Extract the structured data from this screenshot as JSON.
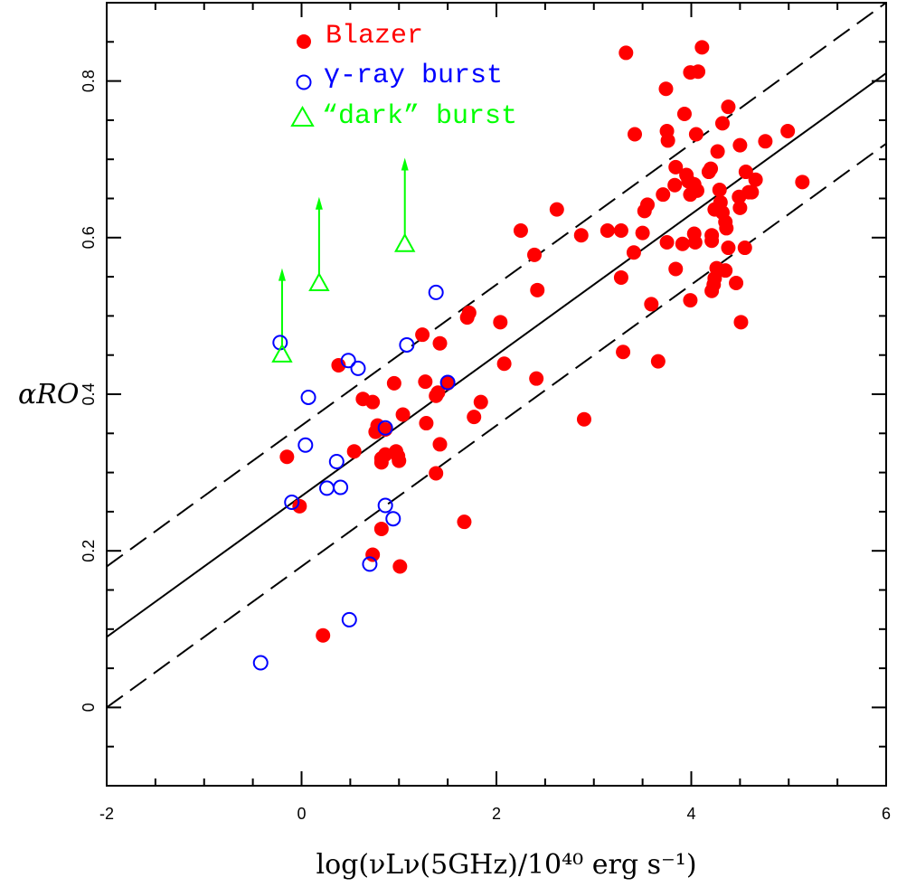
{
  "chart_data": {
    "type": "scatter",
    "xlabel": "log(νLν(5GHz)/10⁴⁰ erg s⁻¹)",
    "ylabel": "αRO",
    "xlim": [
      -2,
      6
    ],
    "ylim": [
      -0.1,
      0.9
    ],
    "x_ticks": [
      -2,
      0,
      2,
      4,
      6
    ],
    "y_ticks": [
      0,
      0.2,
      0.4,
      0.6,
      0.8
    ],
    "x_tick_labels": [
      "-2",
      "0",
      "2",
      "4",
      "6"
    ],
    "y_tick_labels": [
      "0",
      "0.2",
      "0.4",
      "0.6",
      "0.8"
    ],
    "grid": false,
    "legend_position": "top-left",
    "colors": {
      "blazer": "#ff0000",
      "grb": "#0000ff",
      "dark": "#00ff00",
      "lines": "#000000"
    },
    "lines": [
      {
        "style": "solid",
        "x": [
          -2,
          6
        ],
        "y": [
          0.09,
          0.81
        ]
      },
      {
        "style": "dashed",
        "x": [
          -2,
          6
        ],
        "y": [
          0.18,
          0.9
        ]
      },
      {
        "style": "dashed",
        "x": [
          -2,
          6
        ],
        "y": [
          0.0,
          0.72
        ]
      }
    ],
    "series": [
      {
        "name": "Blazer",
        "marker": "filled-circle",
        "points": [
          [
            3.33,
            0.836
          ],
          [
            4.11,
            0.843
          ],
          [
            3.74,
            0.79
          ],
          [
            3.99,
            0.811
          ],
          [
            4.07,
            0.812
          ],
          [
            3.93,
            0.758
          ],
          [
            4.38,
            0.767
          ],
          [
            3.42,
            0.732
          ],
          [
            3.75,
            0.736
          ],
          [
            3.76,
            0.724
          ],
          [
            4.05,
            0.732
          ],
          [
            4.32,
            0.746
          ],
          [
            4.99,
            0.736
          ],
          [
            4.76,
            0.723
          ],
          [
            4.5,
            0.718
          ],
          [
            4.27,
            0.71
          ],
          [
            3.84,
            0.69
          ],
          [
            3.95,
            0.68
          ],
          [
            4.18,
            0.684
          ],
          [
            4.2,
            0.688
          ],
          [
            4.56,
            0.684
          ],
          [
            4.66,
            0.674
          ],
          [
            5.14,
            0.671
          ],
          [
            3.83,
            0.667
          ],
          [
            3.97,
            0.672
          ],
          [
            4.03,
            0.668
          ],
          [
            4.06,
            0.66
          ],
          [
            4.29,
            0.661
          ],
          [
            4.59,
            0.658
          ],
          [
            3.71,
            0.655
          ],
          [
            3.99,
            0.655
          ],
          [
            4.3,
            0.645
          ],
          [
            4.49,
            0.652
          ],
          [
            4.62,
            0.658
          ],
          [
            3.55,
            0.642
          ],
          [
            3.52,
            0.634
          ],
          [
            4.24,
            0.636
          ],
          [
            4.32,
            0.632
          ],
          [
            4.5,
            0.638
          ],
          [
            4.35,
            0.62
          ],
          [
            4.36,
            0.612
          ],
          [
            4.21,
            0.603
          ],
          [
            4.03,
            0.605
          ],
          [
            4.21,
            0.596
          ],
          [
            2.62,
            0.636
          ],
          [
            2.25,
            0.609
          ],
          [
            3.14,
            0.609
          ],
          [
            3.28,
            0.609
          ],
          [
            2.87,
            0.603
          ],
          [
            3.5,
            0.606
          ],
          [
            3.75,
            0.594
          ],
          [
            3.91,
            0.592
          ],
          [
            4.04,
            0.594
          ],
          [
            4.38,
            0.587
          ],
          [
            4.55,
            0.587
          ],
          [
            2.39,
            0.578
          ],
          [
            3.41,
            0.581
          ],
          [
            3.84,
            0.56
          ],
          [
            4.26,
            0.561
          ],
          [
            4.24,
            0.548
          ],
          [
            4.35,
            0.558
          ],
          [
            4.23,
            0.54
          ],
          [
            4.21,
            0.532
          ],
          [
            4.46,
            0.542
          ],
          [
            3.28,
            0.549
          ],
          [
            3.59,
            0.515
          ],
          [
            3.99,
            0.52
          ],
          [
            2.42,
            0.533
          ],
          [
            1.72,
            0.504
          ],
          [
            1.7,
            0.498
          ],
          [
            2.04,
            0.492
          ],
          [
            4.51,
            0.492
          ],
          [
            1.24,
            0.476
          ],
          [
            1.42,
            0.465
          ],
          [
            3.3,
            0.454
          ],
          [
            3.66,
            0.442
          ],
          [
            2.08,
            0.439
          ],
          [
            0.38,
            0.437
          ],
          [
            2.41,
            0.42
          ],
          [
            1.5,
            0.414
          ],
          [
            0.95,
            0.414
          ],
          [
            1.27,
            0.416
          ],
          [
            1.38,
            0.398
          ],
          [
            1.4,
            0.402
          ],
          [
            0.63,
            0.394
          ],
          [
            0.73,
            0.39
          ],
          [
            1.84,
            0.39
          ],
          [
            1.04,
            0.374
          ],
          [
            1.28,
            0.363
          ],
          [
            1.77,
            0.371
          ],
          [
            2.9,
            0.368
          ],
          [
            0.78,
            0.36
          ],
          [
            0.76,
            0.352
          ],
          [
            0.86,
            0.355
          ],
          [
            1.42,
            0.336
          ],
          [
            0.97,
            0.327
          ],
          [
            0.54,
            0.327
          ],
          [
            0.86,
            0.323
          ],
          [
            0.99,
            0.321
          ],
          [
            0.82,
            0.318
          ],
          [
            1.0,
            0.315
          ],
          [
            0.82,
            0.313
          ],
          [
            -0.15,
            0.32
          ],
          [
            1.38,
            0.299
          ],
          [
            -0.02,
            0.257
          ],
          [
            1.67,
            0.237
          ],
          [
            0.82,
            0.228
          ],
          [
            0.73,
            0.195
          ],
          [
            1.01,
            0.18
          ],
          [
            0.22,
            0.092
          ]
        ]
      },
      {
        "name": "γ-ray burst",
        "marker": "open-circle",
        "points": [
          [
            1.38,
            0.53
          ],
          [
            -0.22,
            0.466
          ],
          [
            1.08,
            0.463
          ],
          [
            0.48,
            0.443
          ],
          [
            0.58,
            0.433
          ],
          [
            1.5,
            0.415
          ],
          [
            0.07,
            0.396
          ],
          [
            0.04,
            0.335
          ],
          [
            0.36,
            0.314
          ],
          [
            0.86,
            0.357
          ],
          [
            0.26,
            0.28
          ],
          [
            0.4,
            0.281
          ],
          [
            -0.1,
            0.262
          ],
          [
            0.86,
            0.258
          ],
          [
            0.94,
            0.241
          ],
          [
            0.7,
            0.183
          ],
          [
            0.49,
            0.112
          ],
          [
            -0.42,
            0.057
          ]
        ]
      },
      {
        "name": "“dark” burst",
        "marker": "open-triangle",
        "limit": "lower",
        "points": [
          [
            -0.2,
            0.451
          ],
          [
            0.18,
            0.542
          ],
          [
            1.06,
            0.592
          ]
        ]
      }
    ]
  }
}
